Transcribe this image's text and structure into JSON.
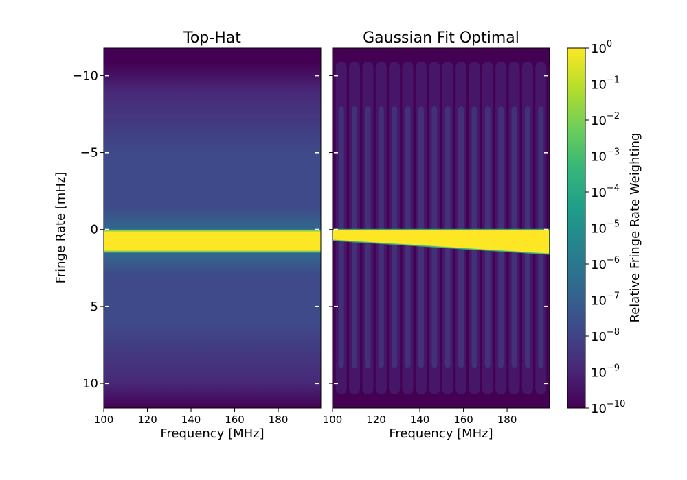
{
  "chart_data": [
    {
      "type": "heatmap",
      "title": "Top-Hat",
      "xlabel": "Frequency [MHz]",
      "ylabel": "Fringe Rate [mHz]",
      "xlim": [
        100,
        199.5
      ],
      "ylim": [
        11.6,
        -11.8
      ],
      "y_inverted": true,
      "xticks": [
        100,
        120,
        140,
        160,
        180
      ],
      "xtick_labels": [
        "100",
        "120",
        "140",
        "160",
        "180"
      ],
      "yticks": [
        -10,
        -5,
        0,
        5,
        10
      ],
      "ytick_labels": [
        "−10",
        "−5",
        "0",
        "5",
        "10"
      ],
      "grid": false,
      "pattern": "horizontal band of weight 1 at fringe rates 0 to 1.5 mHz across all frequencies; background falls from ~1e-7 near the band to ~1e-10 at the edges"
    },
    {
      "type": "heatmap",
      "title": "Gaussian Fit Optimal",
      "xlabel": "Frequency [MHz]",
      "ylabel": "",
      "xlim": [
        100,
        199.5
      ],
      "ylim": [
        11.6,
        -11.8
      ],
      "y_inverted": true,
      "xticks": [
        100,
        120,
        140,
        160,
        180
      ],
      "xtick_labels": [
        "100",
        "120",
        "140",
        "160",
        "180"
      ],
      "yticks": [
        -10,
        -5,
        0,
        5,
        10
      ],
      "grid": false,
      "pattern": "tilted band of weight 1 from ~0.7 mHz at 100 MHz to ~1.6 mHz at 199 MHz; vertical fringe striations roughly every 6 MHz with background ~1e-10 to ~1e-8"
    }
  ],
  "colorbar": {
    "label": "Relative Fringe Rate Weighting",
    "scale": "log",
    "range": [
      1e-10,
      1
    ],
    "colormap": "viridis",
    "tick_labels": [
      {
        "base": "10",
        "exp": "0"
      },
      {
        "base": "10",
        "exp": "−1"
      },
      {
        "base": "10",
        "exp": "−2"
      },
      {
        "base": "10",
        "exp": "−3"
      },
      {
        "base": "10",
        "exp": "−4"
      },
      {
        "base": "10",
        "exp": "−5"
      },
      {
        "base": "10",
        "exp": "−6"
      },
      {
        "base": "10",
        "exp": "−7"
      },
      {
        "base": "10",
        "exp": "−8"
      },
      {
        "base": "10",
        "exp": "−9"
      },
      {
        "base": "10",
        "exp": "−10"
      }
    ]
  },
  "colors": {
    "viridis_stops": [
      "#440154",
      "#482878",
      "#3e4a89",
      "#31688e",
      "#26828e",
      "#1f9e89",
      "#35b779",
      "#6ece58",
      "#b5de2b",
      "#fde725"
    ]
  }
}
